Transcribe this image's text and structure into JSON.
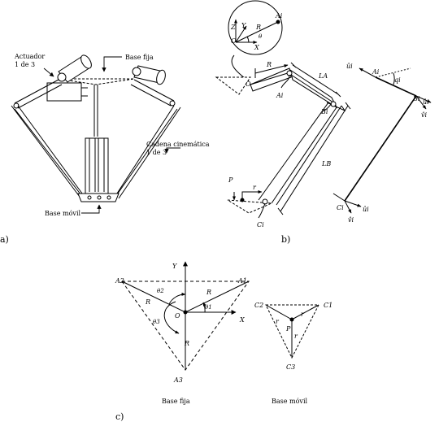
{
  "panel_a": {
    "label": "a)",
    "callouts": {
      "actuator_line1": "Actuador",
      "actuator_line2": "1 de 3",
      "fixed_base": "Base fija",
      "chain_line1": "Cadena cinemática",
      "chain_line2": "1 de 3",
      "mobile_base": "Base móvil"
    }
  },
  "panel_b": {
    "label": "b)",
    "inset": {
      "z": "Z",
      "y": "Y",
      "x": "X",
      "r": "R",
      "a": "Ai",
      "o": "O",
      "theta": "θ"
    },
    "left": {
      "o": "O",
      "r": "R",
      "la": "LA",
      "ai": "Ai",
      "bi": "Bi",
      "lb": "LB",
      "p": "P",
      "small_r": "r",
      "ci": "Ci"
    },
    "right": {
      "ui_top": "ûi",
      "ai": "Ai",
      "qi": "qi",
      "bi": "Bi",
      "ui_b": "ûi",
      "vi_b": "v̂i",
      "ci": "Ci",
      "ui_c": "ûi",
      "vi_c": "v̂i"
    }
  },
  "panel_c": {
    "label": "c)",
    "left": {
      "a1": "A1",
      "a2": "A2",
      "a3": "A3",
      "o": "O",
      "x": "X",
      "y": "Y",
      "theta1": "θ1",
      "theta2": "θ2",
      "theta3": "θ3",
      "r_a1": "R",
      "r_a2": "R",
      "r_a3": "R",
      "caption": "Base fija"
    },
    "right": {
      "c1": "C1",
      "c2": "C2",
      "c3": "C3",
      "p": "P",
      "r1": "r",
      "r2": "r",
      "r3": "r",
      "caption": "Base móvil"
    }
  }
}
